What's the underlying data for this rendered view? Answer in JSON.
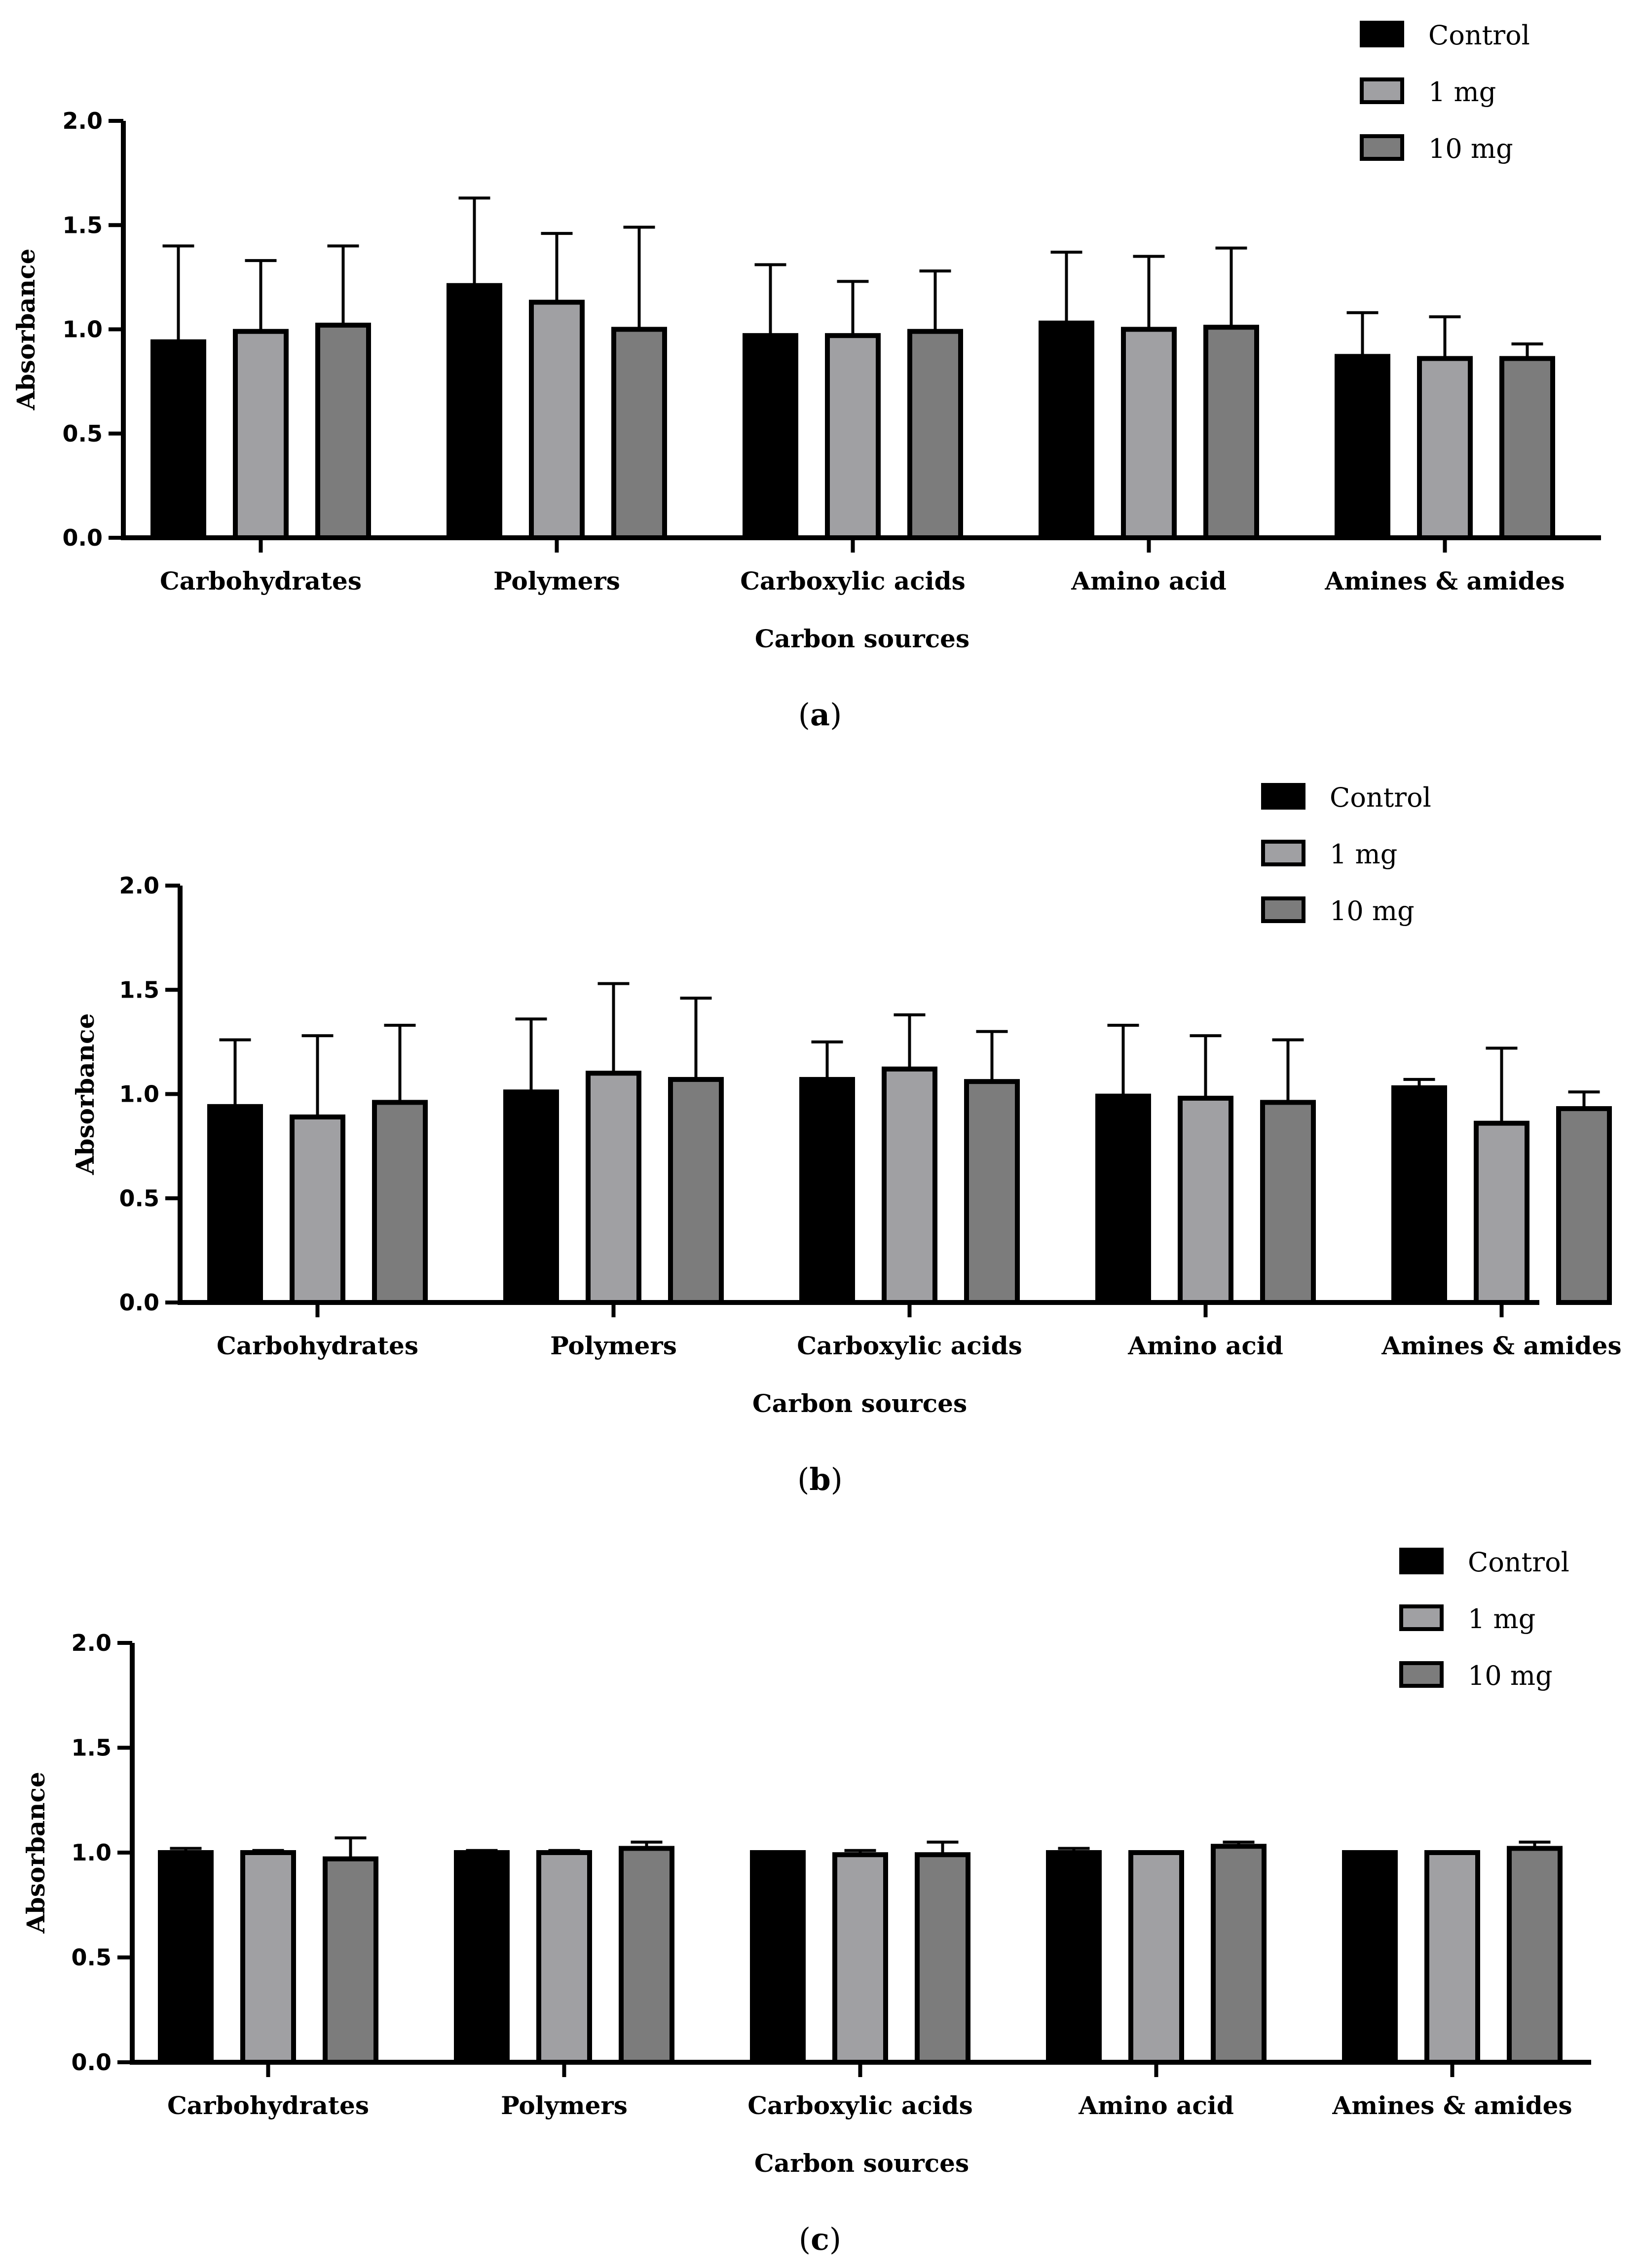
{
  "series_colors": {
    "Control": "#000000",
    "1 mg": "#a0a0a3",
    "10 mg": "#7c7c7c"
  },
  "chart_data": [
    {
      "panel": "a",
      "type": "bar",
      "xlabel": "Carbon sources",
      "ylabel": "Absorbance",
      "ylim": [
        0,
        2.0
      ],
      "yticks": [
        "0.0",
        "0.5",
        "1.0",
        "1.5",
        "2.0"
      ],
      "categories": [
        "Carbohydrates",
        "Polymers",
        "Carboxylic acids",
        "Amino acid",
        "Amines & amides"
      ],
      "series": [
        {
          "name": "Control",
          "values": [
            0.94,
            1.21,
            0.97,
            1.03,
            0.87
          ],
          "errors": [
            0.46,
            0.42,
            0.34,
            0.34,
            0.21
          ]
        },
        {
          "name": "1 mg",
          "values": [
            0.99,
            1.13,
            0.97,
            1.0,
            0.86
          ],
          "errors": [
            0.34,
            0.33,
            0.26,
            0.35,
            0.2
          ]
        },
        {
          "name": "10 mg",
          "values": [
            1.02,
            1.0,
            0.99,
            1.01,
            0.86
          ],
          "errors": [
            0.38,
            0.49,
            0.29,
            0.38,
            0.07
          ]
        }
      ],
      "legend": [
        "Control",
        "1 mg",
        "10 mg"
      ],
      "legend_position": "top-right"
    },
    {
      "panel": "b",
      "type": "bar",
      "xlabel": "Carbon sources",
      "ylabel": "Absorbance",
      "ylim": [
        0,
        2.0
      ],
      "yticks": [
        "0.0",
        "0.5",
        "1.0",
        "1.5",
        "2.0"
      ],
      "categories": [
        "Carbohydrates",
        "Polymers",
        "Carboxylic acids",
        "Amino acid",
        "Amines & amides"
      ],
      "series": [
        {
          "name": "Control",
          "values": [
            0.94,
            1.01,
            1.07,
            0.99,
            1.03
          ],
          "errors": [
            0.32,
            0.35,
            0.18,
            0.34,
            0.04
          ]
        },
        {
          "name": "1 mg",
          "values": [
            0.89,
            1.1,
            1.12,
            0.98,
            0.86
          ],
          "errors": [
            0.39,
            0.43,
            0.26,
            0.3,
            0.36
          ]
        },
        {
          "name": "10 mg",
          "values": [
            0.96,
            1.07,
            1.06,
            0.96,
            0.93
          ],
          "errors": [
            0.37,
            0.39,
            0.24,
            0.3,
            0.08
          ]
        }
      ],
      "legend": [
        "Control",
        "1 mg",
        "10 mg"
      ],
      "legend_position": "top-right"
    },
    {
      "panel": "c",
      "type": "bar",
      "xlabel": "Carbon sources",
      "ylabel": "Absorbance",
      "ylim": [
        0,
        2.0
      ],
      "yticks": [
        "0.0",
        "0.5",
        "1.0",
        "1.5",
        "2.0"
      ],
      "categories": [
        "Carbohydrates",
        "Polymers",
        "Carboxylic acids",
        "Amino acid",
        "Amines & amides"
      ],
      "series": [
        {
          "name": "Control",
          "values": [
            1.0,
            1.0,
            1.0,
            1.0,
            1.0
          ],
          "errors": [
            0.02,
            0.01,
            0.0,
            0.02,
            0.0
          ]
        },
        {
          "name": "1 mg",
          "values": [
            1.0,
            1.0,
            0.99,
            1.0,
            1.0
          ],
          "errors": [
            0.01,
            0.01,
            0.02,
            0.0,
            0.0
          ]
        },
        {
          "name": "10 mg",
          "values": [
            0.97,
            1.02,
            0.99,
            1.03,
            1.02
          ],
          "errors": [
            0.1,
            0.03,
            0.06,
            0.02,
            0.03
          ]
        }
      ],
      "legend": [
        "Control",
        "1 mg",
        "10 mg"
      ],
      "legend_position": "top-right"
    }
  ]
}
